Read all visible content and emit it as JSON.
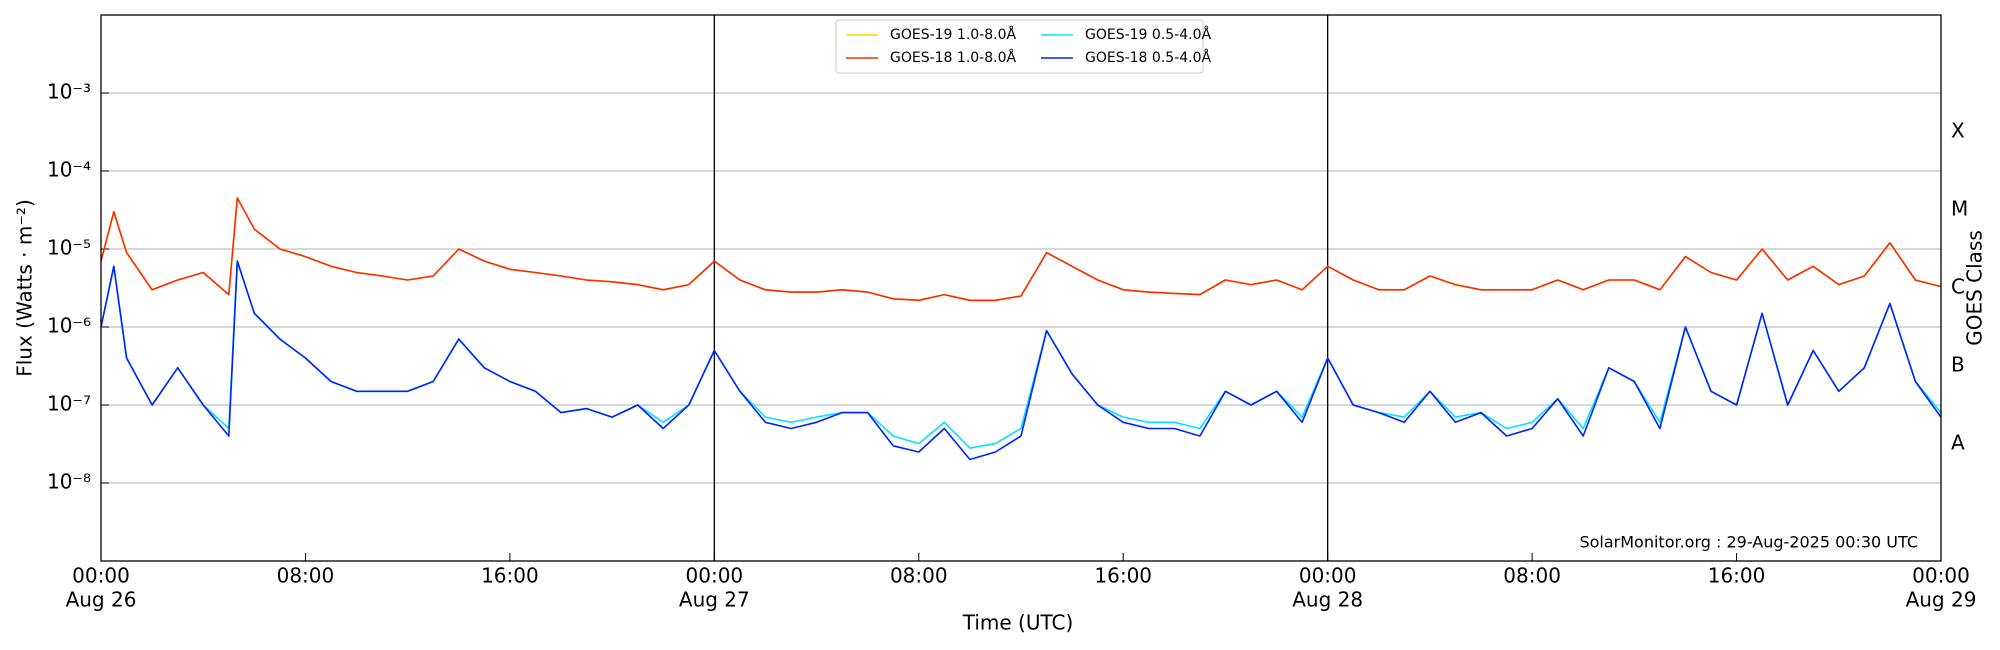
{
  "chart_data": {
    "type": "line",
    "y_label": "Flux (Watts · m⁻²)",
    "x_label": "Time (UTC)",
    "y2_label": "GOES Class",
    "annotation": "SolarMonitor.org : 29-Aug-2025 00:30 UTC",
    "log_y": true,
    "grid": true,
    "legend": "top-center",
    "xlim": [
      "Aug 26 00:00",
      "Aug 29 00:00"
    ],
    "xticks": [
      {
        "value": "Aug 26 00:00",
        "label": "00:00",
        "date": "Aug 26"
      },
      {
        "value": "Aug 26 08:00",
        "label": "08:00"
      },
      {
        "value": "Aug 26 16:00",
        "label": "16:00"
      },
      {
        "value": "Aug 27 00:00",
        "label": "00:00",
        "date": "Aug 27"
      },
      {
        "value": "Aug 27 08:00",
        "label": "08:00"
      },
      {
        "value": "Aug 27 16:00",
        "label": "16:00"
      },
      {
        "value": "Aug 28 00:00",
        "label": "00:00",
        "date": "Aug 28"
      },
      {
        "value": "Aug 28 08:00",
        "label": "08:00"
      },
      {
        "value": "Aug 28 16:00",
        "label": "16:00"
      },
      {
        "value": "Aug 29 00:00",
        "label": "00:00",
        "date": "Aug 29"
      }
    ],
    "day_lines": [
      "Aug 27 00:00",
      "Aug 28 00:00"
    ],
    "ylim": [
      1e-09,
      0.01
    ],
    "yticks": [
      {
        "value": 1e-08,
        "label": "10⁻⁸"
      },
      {
        "value": 1e-07,
        "label": "10⁻⁷"
      },
      {
        "value": 1e-06,
        "label": "10⁻⁶"
      },
      {
        "value": 1e-05,
        "label": "10⁻⁵"
      },
      {
        "value": 0.0001,
        "label": "10⁻⁴"
      },
      {
        "value": 0.001,
        "label": "10⁻³"
      }
    ],
    "y2ticks": [
      {
        "value": 3.162e-08,
        "label": "A"
      },
      {
        "value": 3.162e-07,
        "label": "B"
      },
      {
        "value": 3.162e-06,
        "label": "C"
      },
      {
        "value": 3.162e-05,
        "label": "M"
      },
      {
        "value": 0.0003162,
        "label": "X"
      }
    ],
    "x": [
      "Aug 26 00:00",
      "Aug 26 00:30",
      "Aug 26 01:00",
      "Aug 26 02:00",
      "Aug 26 03:00",
      "Aug 26 04:00",
      "Aug 26 05:00",
      "Aug 26 05:20",
      "Aug 26 06:00",
      "Aug 26 07:00",
      "Aug 26 08:00",
      "Aug 26 09:00",
      "Aug 26 10:00",
      "Aug 26 11:00",
      "Aug 26 12:00",
      "Aug 26 13:00",
      "Aug 26 14:00",
      "Aug 26 15:00",
      "Aug 26 16:00",
      "Aug 26 17:00",
      "Aug 26 18:00",
      "Aug 26 19:00",
      "Aug 26 20:00",
      "Aug 26 21:00",
      "Aug 26 22:00",
      "Aug 26 23:00",
      "Aug 27 00:00",
      "Aug 27 01:00",
      "Aug 27 02:00",
      "Aug 27 03:00",
      "Aug 27 04:00",
      "Aug 27 05:00",
      "Aug 27 06:00",
      "Aug 27 07:00",
      "Aug 27 08:00",
      "Aug 27 09:00",
      "Aug 27 10:00",
      "Aug 27 11:00",
      "Aug 27 12:00",
      "Aug 27 13:00",
      "Aug 27 14:00",
      "Aug 27 15:00",
      "Aug 27 16:00",
      "Aug 27 17:00",
      "Aug 27 18:00",
      "Aug 27 19:00",
      "Aug 27 20:00",
      "Aug 27 21:00",
      "Aug 27 22:00",
      "Aug 27 23:00",
      "Aug 28 00:00",
      "Aug 28 01:00",
      "Aug 28 02:00",
      "Aug 28 03:00",
      "Aug 28 04:00",
      "Aug 28 05:00",
      "Aug 28 06:00",
      "Aug 28 07:00",
      "Aug 28 08:00",
      "Aug 28 09:00",
      "Aug 28 10:00",
      "Aug 28 11:00",
      "Aug 28 12:00",
      "Aug 28 13:00",
      "Aug 28 14:00",
      "Aug 28 15:00",
      "Aug 28 16:00",
      "Aug 28 17:00",
      "Aug 28 18:00",
      "Aug 28 19:00",
      "Aug 28 20:00",
      "Aug 28 21:00",
      "Aug 28 22:00",
      "Aug 28 23:00",
      "Aug 29 00:00"
    ],
    "series": [
      {
        "name": "GOES-19 1.0-8.0Å",
        "color": "#ffd700",
        "values": [
          7e-06,
          3e-05,
          9e-06,
          3e-06,
          4e-06,
          5e-06,
          2.6e-06,
          4.5e-05,
          1.8e-05,
          1e-05,
          8e-06,
          6e-06,
          5e-06,
          4.5e-06,
          4e-06,
          4.5e-06,
          1e-05,
          7e-06,
          5.5e-06,
          5e-06,
          4.5e-06,
          4e-06,
          3.8e-06,
          3.5e-06,
          3e-06,
          3.5e-06,
          7e-06,
          4e-06,
          3e-06,
          2.8e-06,
          2.8e-06,
          3e-06,
          2.8e-06,
          2.3e-06,
          2.2e-06,
          2.6e-06,
          2.2e-06,
          2.2e-06,
          2.5e-06,
          9e-06,
          6e-06,
          4e-06,
          3e-06,
          2.8e-06,
          2.7e-06,
          2.6e-06,
          4e-06,
          3.5e-06,
          4e-06,
          3e-06,
          6e-06,
          4e-06,
          3e-06,
          3e-06,
          4.5e-06,
          3.5e-06,
          3e-06,
          3e-06,
          3e-06,
          4e-06,
          3e-06,
          4e-06,
          4e-06,
          3e-06,
          8e-06,
          5e-06,
          4e-06,
          1e-05,
          4e-06,
          6e-06,
          3.5e-06,
          4.5e-06,
          1.2e-05,
          4e-06,
          3.3e-06
        ]
      },
      {
        "name": "GOES-18 1.0-8.0Å",
        "color": "#ff2a00",
        "values": [
          7e-06,
          3e-05,
          9e-06,
          3e-06,
          4e-06,
          5e-06,
          2.6e-06,
          4.5e-05,
          1.8e-05,
          1e-05,
          8e-06,
          6e-06,
          5e-06,
          4.5e-06,
          4e-06,
          4.5e-06,
          1e-05,
          7e-06,
          5.5e-06,
          5e-06,
          4.5e-06,
          4e-06,
          3.8e-06,
          3.5e-06,
          3e-06,
          3.5e-06,
          7e-06,
          4e-06,
          3e-06,
          2.8e-06,
          2.8e-06,
          3e-06,
          2.8e-06,
          2.3e-06,
          2.2e-06,
          2.6e-06,
          2.2e-06,
          2.2e-06,
          2.5e-06,
          9e-06,
          6e-06,
          4e-06,
          3e-06,
          2.8e-06,
          2.7e-06,
          2.6e-06,
          4e-06,
          3.5e-06,
          4e-06,
          3e-06,
          6e-06,
          4e-06,
          3e-06,
          3e-06,
          4.5e-06,
          3.5e-06,
          3e-06,
          3e-06,
          3e-06,
          4e-06,
          3e-06,
          4e-06,
          4e-06,
          3e-06,
          8e-06,
          5e-06,
          4e-06,
          1e-05,
          4e-06,
          6e-06,
          3.5e-06,
          4.5e-06,
          1.2e-05,
          4e-06,
          3.3e-06
        ]
      },
      {
        "name": "GOES-19 0.5-4.0Å",
        "color": "#00e5ff",
        "values": [
          1e-06,
          6e-06,
          4e-07,
          1e-07,
          3e-07,
          1e-07,
          5e-08,
          7e-06,
          1.5e-06,
          7e-07,
          4e-07,
          2e-07,
          1.5e-07,
          1.5e-07,
          1.5e-07,
          2e-07,
          7e-07,
          3e-07,
          2e-07,
          1.5e-07,
          8e-08,
          9e-08,
          7e-08,
          1e-07,
          6e-08,
          1e-07,
          5e-07,
          1.5e-07,
          7e-08,
          6e-08,
          7e-08,
          8e-08,
          8e-08,
          4e-08,
          3.2e-08,
          6e-08,
          2.8e-08,
          3.2e-08,
          5e-08,
          9e-07,
          2.5e-07,
          1e-07,
          7e-08,
          6e-08,
          6e-08,
          5e-08,
          1.5e-07,
          1e-07,
          1.5e-07,
          7e-08,
          4e-07,
          1e-07,
          8e-08,
          7e-08,
          1.5e-07,
          7e-08,
          8e-08,
          5e-08,
          6e-08,
          1.2e-07,
          5e-08,
          3e-07,
          2e-07,
          6e-08,
          1e-06,
          1.5e-07,
          1e-07,
          1.5e-06,
          1e-07,
          5e-07,
          1.5e-07,
          3e-07,
          2e-06,
          2e-07,
          8e-08
        ]
      },
      {
        "name": "GOES-18 0.5-4.0Å",
        "color": "#0022ff",
        "values": [
          1e-06,
          6e-06,
          4e-07,
          1e-07,
          3e-07,
          1e-07,
          4e-08,
          7e-06,
          1.5e-06,
          7e-07,
          4e-07,
          2e-07,
          1.5e-07,
          1.5e-07,
          1.5e-07,
          2e-07,
          7e-07,
          3e-07,
          2e-07,
          1.5e-07,
          8e-08,
          9e-08,
          7e-08,
          1e-07,
          5e-08,
          1e-07,
          5e-07,
          1.5e-07,
          6e-08,
          5e-08,
          6e-08,
          8e-08,
          8e-08,
          3e-08,
          2.5e-08,
          5e-08,
          2e-08,
          2.5e-08,
          4e-08,
          9e-07,
          2.5e-07,
          1e-07,
          6e-08,
          5e-08,
          5e-08,
          4e-08,
          1.5e-07,
          1e-07,
          1.5e-07,
          6e-08,
          4e-07,
          1e-07,
          8e-08,
          6e-08,
          1.5e-07,
          6e-08,
          8e-08,
          4e-08,
          5e-08,
          1.2e-07,
          4e-08,
          3e-07,
          2e-07,
          5e-08,
          1e-06,
          1.5e-07,
          1e-07,
          1.5e-06,
          1e-07,
          5e-07,
          1.5e-07,
          3e-07,
          2e-06,
          2e-07,
          7e-08
        ]
      }
    ]
  }
}
